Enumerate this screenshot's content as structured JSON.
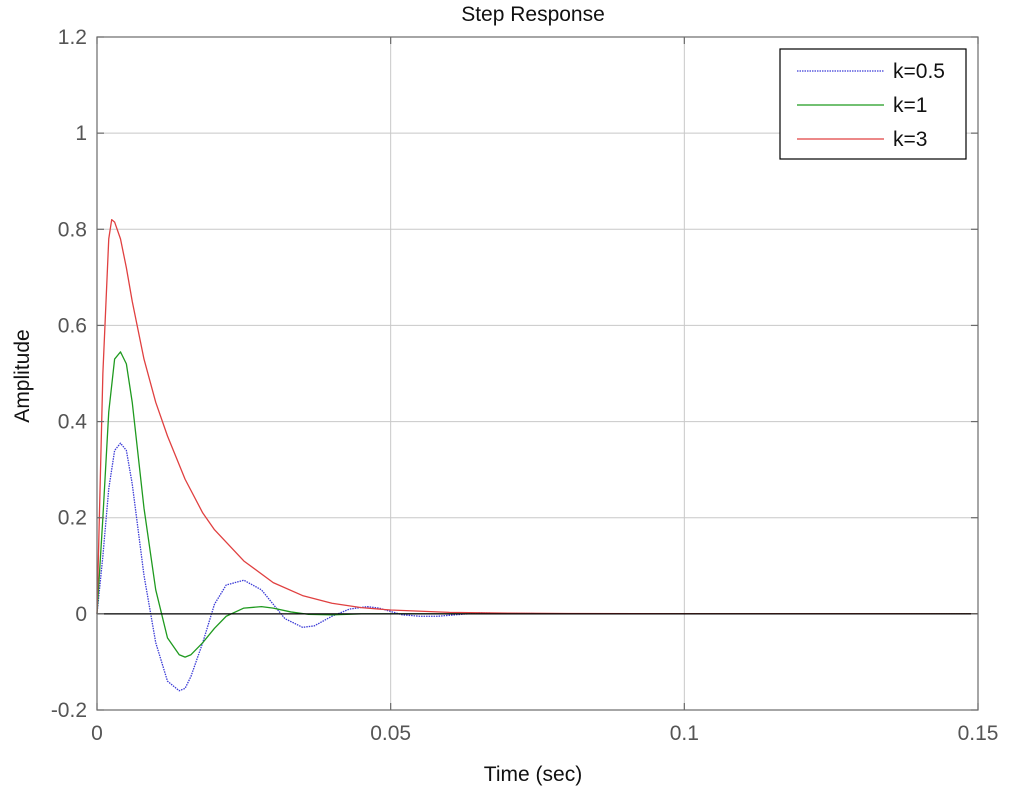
{
  "chart_data": {
    "type": "line",
    "title": "Step Response",
    "xlabel": "Time (sec)",
    "ylabel": "Amplitude",
    "xlim": [
      0,
      0.15
    ],
    "ylim": [
      -0.2,
      1.2
    ],
    "x_ticks": [
      {
        "value": 0,
        "label": "0"
      },
      {
        "value": 0.05,
        "label": "0.05"
      },
      {
        "value": 0.1,
        "label": "0.1"
      },
      {
        "value": 0.15,
        "label": "0.15"
      }
    ],
    "y_ticks": [
      {
        "value": -0.2,
        "label": "-0.2"
      },
      {
        "value": 0,
        "label": "0"
      },
      {
        "value": 0.2,
        "label": "0.2"
      },
      {
        "value": 0.4,
        "label": "0.4"
      },
      {
        "value": 0.6,
        "label": "0.6"
      },
      {
        "value": 0.8,
        "label": "0.8"
      },
      {
        "value": 1,
        "label": "1"
      },
      {
        "value": 1.2,
        "label": "1.2"
      }
    ],
    "grid": true,
    "legend_position": "top-right",
    "series": [
      {
        "name": "k=0.5",
        "color": "#3b3bd6",
        "dash": "dotted",
        "x": [
          0,
          0.001,
          0.002,
          0.003,
          0.004,
          0.005,
          0.006,
          0.008,
          0.01,
          0.012,
          0.014,
          0.015,
          0.016,
          0.018,
          0.02,
          0.022,
          0.025,
          0.028,
          0.03,
          0.032,
          0.035,
          0.037,
          0.04,
          0.043,
          0.046,
          0.048,
          0.05,
          0.052,
          0.055,
          0.058,
          0.06,
          0.065,
          0.07,
          0.08,
          0.09,
          0.1,
          0.15
        ],
        "y": [
          0,
          0.12,
          0.26,
          0.34,
          0.355,
          0.34,
          0.27,
          0.08,
          -0.06,
          -0.14,
          -0.16,
          -0.155,
          -0.13,
          -0.06,
          0.02,
          0.06,
          0.07,
          0.05,
          0.02,
          -0.01,
          -0.028,
          -0.025,
          -0.005,
          0.01,
          0.015,
          0.012,
          0.005,
          -0.002,
          -0.005,
          -0.005,
          -0.003,
          0.002,
          0.001,
          0.0,
          0.0,
          0.0,
          0.0
        ]
      },
      {
        "name": "k=1",
        "color": "#1f9a1f",
        "dash": "solid",
        "x": [
          0,
          0.001,
          0.002,
          0.003,
          0.004,
          0.005,
          0.006,
          0.008,
          0.01,
          0.012,
          0.014,
          0.015,
          0.016,
          0.018,
          0.02,
          0.022,
          0.025,
          0.028,
          0.03,
          0.033,
          0.036,
          0.04,
          0.045,
          0.05,
          0.06,
          0.08,
          0.1,
          0.15
        ],
        "y": [
          0,
          0.2,
          0.42,
          0.53,
          0.545,
          0.52,
          0.44,
          0.22,
          0.05,
          -0.05,
          -0.085,
          -0.09,
          -0.085,
          -0.06,
          -0.03,
          -0.005,
          0.012,
          0.015,
          0.012,
          0.004,
          -0.001,
          -0.002,
          0.0,
          0.0,
          0.0,
          0.0,
          0.0,
          0.0
        ]
      },
      {
        "name": "k=3",
        "color": "#e04040",
        "dash": "solid",
        "x": [
          0,
          0.001,
          0.002,
          0.0025,
          0.003,
          0.004,
          0.005,
          0.006,
          0.008,
          0.01,
          0.012,
          0.015,
          0.018,
          0.02,
          0.025,
          0.03,
          0.035,
          0.04,
          0.045,
          0.05,
          0.06,
          0.07,
          0.08,
          0.1,
          0.15
        ],
        "y": [
          0,
          0.5,
          0.78,
          0.82,
          0.815,
          0.78,
          0.72,
          0.65,
          0.53,
          0.44,
          0.37,
          0.28,
          0.21,
          0.175,
          0.11,
          0.065,
          0.038,
          0.022,
          0.013,
          0.008,
          0.003,
          0.0015,
          0.0008,
          0.0002,
          0.0
        ]
      }
    ]
  }
}
